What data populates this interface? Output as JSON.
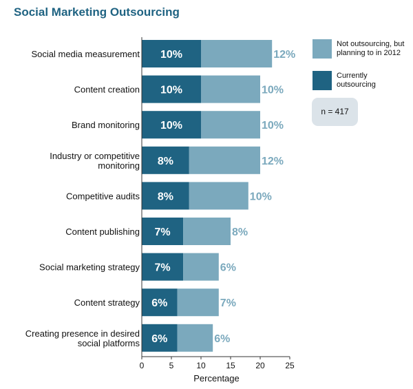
{
  "chart_data": {
    "type": "bar",
    "orientation": "horizontal",
    "stacked": true,
    "title": "Social Marketing Outsourcing",
    "xlabel": "Percentage",
    "ylabel": "",
    "xlim": [
      0,
      25
    ],
    "xticks": [
      0,
      5,
      10,
      15,
      20,
      25
    ],
    "categories": [
      [
        "Social media measurement"
      ],
      [
        "Content  creation"
      ],
      [
        "Brand monitoring"
      ],
      [
        "Industry or competitive",
        "monitoring"
      ],
      [
        "Competitive audits"
      ],
      [
        "Content publishing"
      ],
      [
        "Social marketing strategy"
      ],
      [
        "Content strategy"
      ],
      [
        "Creating presence in desired",
        "social platforms"
      ]
    ],
    "series": [
      {
        "name": "Currently outsourcing",
        "legend_lines": [
          "Currently",
          "outsourcing"
        ],
        "color": "#1f6382",
        "values": [
          10,
          10,
          10,
          8,
          8,
          7,
          7,
          6,
          6
        ],
        "labels": [
          "10%",
          "10%",
          "10%",
          "8%",
          "8%",
          "7%",
          "7%",
          "6%",
          "6%"
        ]
      },
      {
        "name": "Not outsourcing, but planning to in 2012",
        "legend_lines": [
          "Not outsourcing, but",
          "planning to in 2012"
        ],
        "color": "#7ba9bd",
        "values": [
          12,
          10,
          10,
          12,
          10,
          8,
          6,
          7,
          6
        ],
        "labels": [
          "12%",
          "10%",
          "10%",
          "12%",
          "10%",
          "8%",
          "6%",
          "7%",
          "6%"
        ]
      }
    ],
    "note": "n = 417",
    "legend_position": "right",
    "grid": false
  }
}
